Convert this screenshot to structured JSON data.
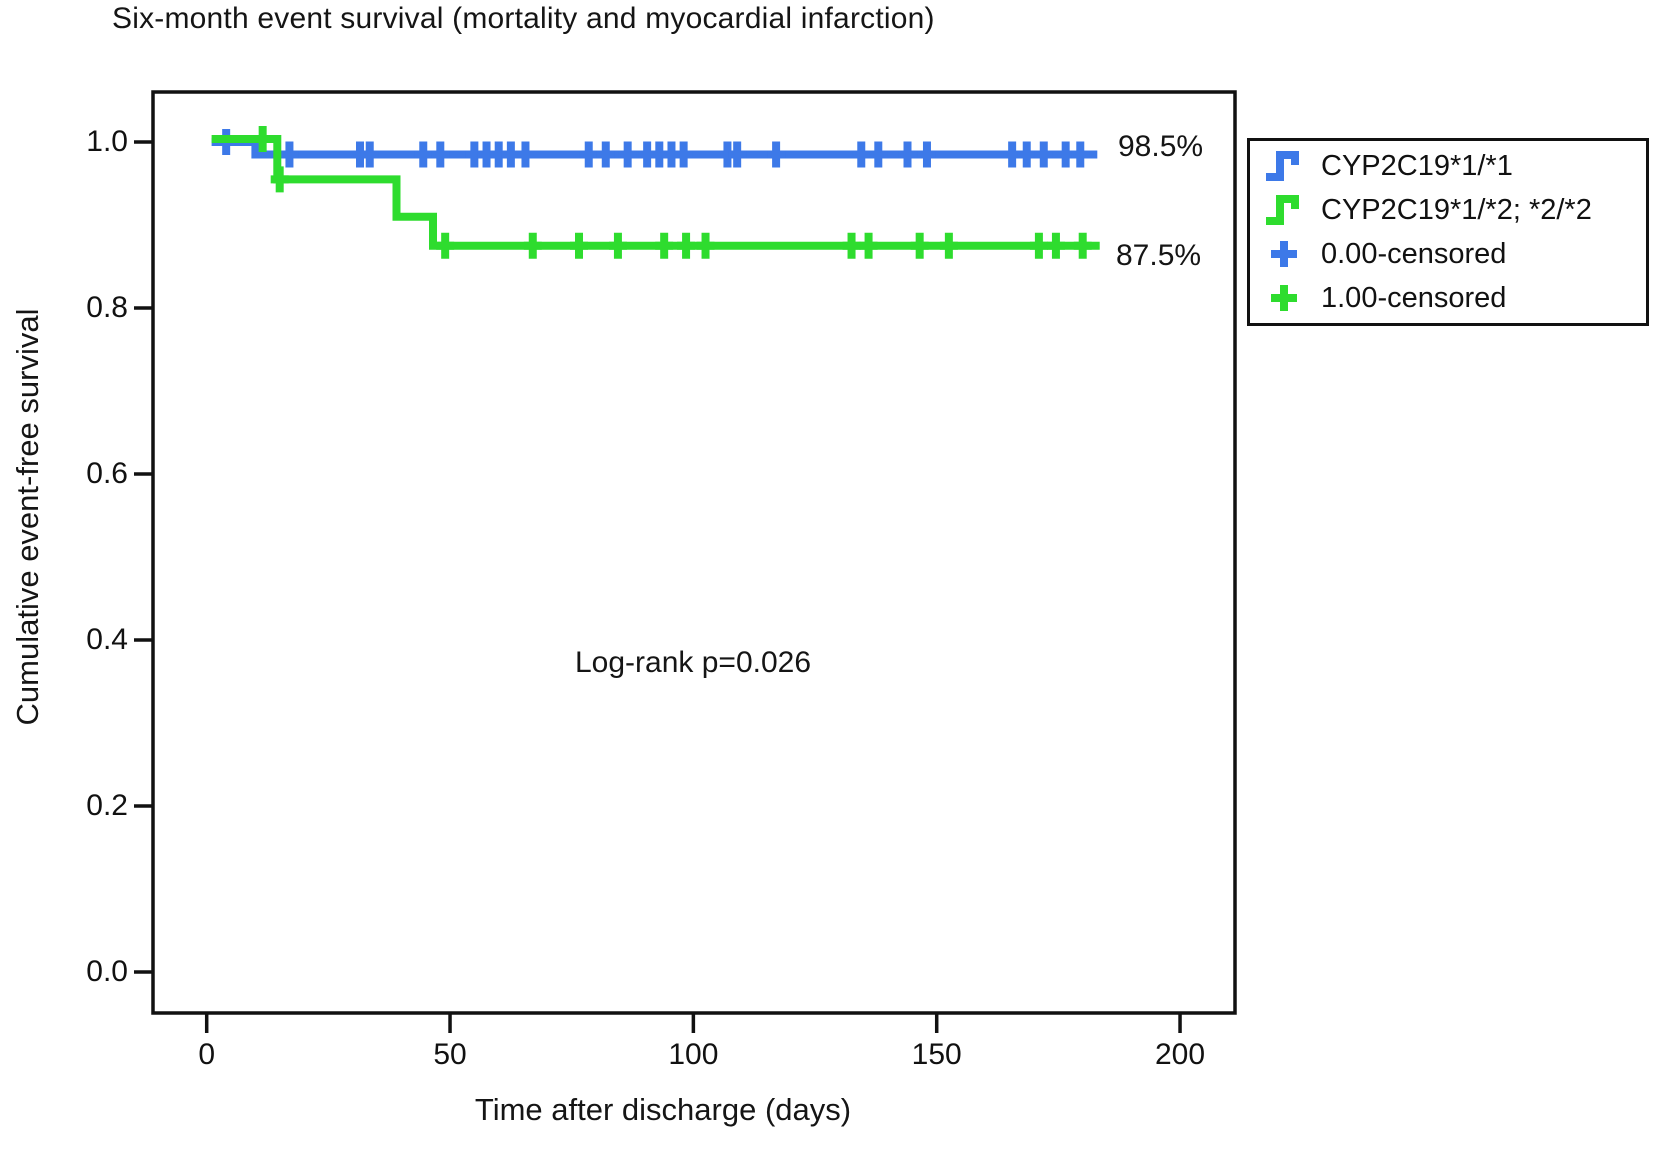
{
  "title": "Six-month event survival (mortality and myocardial infarction)",
  "chart_data": {
    "type": "line",
    "subtype": "kaplan-meier-step",
    "title": "Six-month event survival (mortality and myocardial infarction)",
    "xlabel": "Time after discharge (days)",
    "ylabel": "Cumulative event-free survival",
    "annotation": "Log-rank p=0.026",
    "xticks": [
      0,
      50,
      100,
      150,
      200
    ],
    "ytick_labels": [
      "1.0",
      "0.8",
      "0.6",
      "0.4",
      "0.2",
      "0.0"
    ],
    "xlim": [
      -11,
      211
    ],
    "ylim": [
      -0.05,
      1.06
    ],
    "grid": false,
    "legend_position": "upper-right-outside",
    "series": [
      {
        "name": "CYP2C19*1/*1",
        "color": "#3D79E8",
        "end_label": "98.5%",
        "steps": [
          [
            1,
            1.0
          ],
          [
            10,
            1.0
          ],
          [
            10,
            0.985
          ],
          [
            183,
            0.985
          ]
        ],
        "censor_marks": [
          [
            4,
            1.0
          ],
          [
            17,
            0.985
          ],
          [
            31.5,
            0.985
          ],
          [
            33.5,
            0.985
          ],
          [
            44.5,
            0.985
          ],
          [
            48,
            0.985
          ],
          [
            55,
            0.985
          ],
          [
            57.5,
            0.985
          ],
          [
            60,
            0.985
          ],
          [
            62.5,
            0.985
          ],
          [
            65.5,
            0.985
          ],
          [
            78.5,
            0.985
          ],
          [
            82,
            0.985
          ],
          [
            86.5,
            0.985
          ],
          [
            90.5,
            0.985
          ],
          [
            93,
            0.985
          ],
          [
            95.5,
            0.985
          ],
          [
            98,
            0.985
          ],
          [
            107,
            0.985
          ],
          [
            109,
            0.985
          ],
          [
            117,
            0.985
          ],
          [
            134.5,
            0.985
          ],
          [
            138,
            0.985
          ],
          [
            144,
            0.985
          ],
          [
            148,
            0.985
          ],
          [
            165.5,
            0.985
          ],
          [
            168.5,
            0.985
          ],
          [
            172,
            0.985
          ],
          [
            176.5,
            0.985
          ],
          [
            179.5,
            0.985
          ]
        ]
      },
      {
        "name": "CYP2C19*1/*2; *2/*2",
        "color": "#2EDC2E",
        "end_label": "87.5%",
        "steps": [
          [
            1,
            1.0
          ],
          [
            14.5,
            1.0
          ],
          [
            14.5,
            0.955
          ],
          [
            39,
            0.955
          ],
          [
            39,
            0.91
          ],
          [
            46.5,
            0.91
          ],
          [
            46.5,
            0.875
          ],
          [
            183.5,
            0.875
          ]
        ],
        "censor_marks": [
          [
            11.5,
            1.0
          ],
          [
            15,
            0.955
          ],
          [
            49,
            0.875
          ],
          [
            67,
            0.875
          ],
          [
            76.5,
            0.875
          ],
          [
            84.5,
            0.875
          ],
          [
            94,
            0.875
          ],
          [
            98.5,
            0.875
          ],
          [
            102.5,
            0.875
          ],
          [
            132.5,
            0.875
          ],
          [
            136,
            0.875
          ],
          [
            146.5,
            0.875
          ],
          [
            152.5,
            0.875
          ],
          [
            171,
            0.875
          ],
          [
            174.5,
            0.875
          ],
          [
            180,
            0.875
          ]
        ]
      }
    ],
    "legend": {
      "items": [
        {
          "label": "CYP2C19*1/*1",
          "color": "#3D79E8",
          "marker": "step"
        },
        {
          "label": "CYP2C19*1/*2; *2/*2",
          "color": "#2EDC2E",
          "marker": "step"
        },
        {
          "label": "0.00-censored",
          "color": "#3D79E8",
          "marker": "plus"
        },
        {
          "label": "1.00-censored",
          "color": "#2EDC2E",
          "marker": "plus"
        }
      ]
    }
  }
}
